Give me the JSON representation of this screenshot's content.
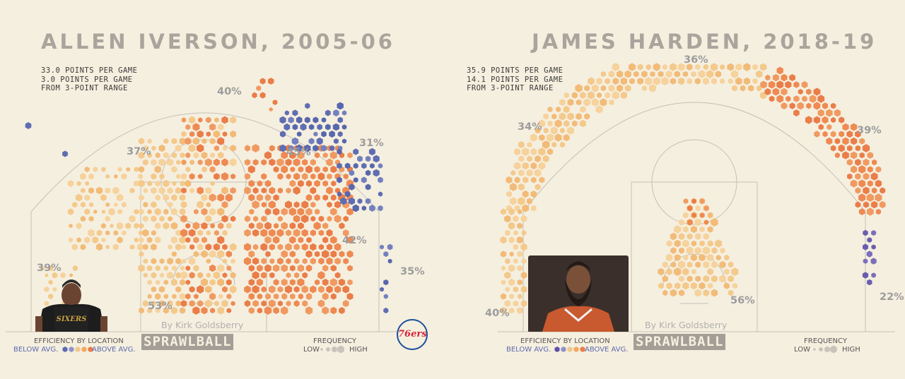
{
  "chart_data": [
    {
      "type": "scatter",
      "subtype": "hexagonal shot chart",
      "title": "ALLEN IVERSON, 2005-06",
      "stats": [
        "33.0 POINTS PER GAME",
        "3.0 POINTS PER GAME",
        "FROM 3-POINT RANGE"
      ],
      "zone_percentages": [
        {
          "zone": "above-break-3-center",
          "label": "40%"
        },
        {
          "zone": "left-wing-3",
          "label": "37%"
        },
        {
          "zone": "right-wing-mid",
          "label": "45%"
        },
        {
          "zone": "right-wing-3",
          "label": "31%"
        },
        {
          "zone": "right-baseline-mid",
          "label": "42%"
        },
        {
          "zone": "right-corner-3",
          "label": "35%"
        },
        {
          "zone": "left-corner-3",
          "label": "39%"
        },
        {
          "zone": "restricted-area",
          "label": "53%"
        }
      ],
      "byline": "By Kirk Goldsberry",
      "brand": "SPRAWLBALL",
      "legend": {
        "efficiency_title": "EFFICIENCY BY LOCATION",
        "below": "BELOW AVG.",
        "above": "ABOVE AVG.",
        "frequency_title": "FREQUENCY",
        "low": "LOW",
        "high": "HIGH",
        "colors": [
          "#5d6ab0",
          "#8f93c9",
          "#f0c78a",
          "#f4a862",
          "#ea7d48"
        ]
      },
      "team_logo": "76ers",
      "photo_jersey": "SIXERS"
    },
    {
      "type": "scatter",
      "subtype": "hexagonal shot chart",
      "title": "JAMES HARDEN, 2018-19",
      "stats": [
        "35.9 POINTS PER GAME",
        "14.1 POINTS PER GAME",
        "FROM 3-POINT RANGE"
      ],
      "zone_percentages": [
        {
          "zone": "above-break-3-center",
          "label": "36%"
        },
        {
          "zone": "left-wing-3",
          "label": "34%"
        },
        {
          "zone": "right-wing-3",
          "label": "39%"
        },
        {
          "zone": "left-corner-3",
          "label": "40%"
        },
        {
          "zone": "restricted-area",
          "label": "56%"
        },
        {
          "zone": "right-corner-3",
          "label": "22%"
        }
      ],
      "byline": "By Kirk Goldsberry",
      "brand": "SPRAWLBALL",
      "legend": {
        "efficiency_title": "EFFICIENCY BY LOCATION",
        "below": "BELOW AVG.",
        "above": "ABOVE AVG.",
        "frequency_title": "FREQUENCY",
        "low": "LOW",
        "high": "HIGH",
        "colors": [
          "#5d4fa8",
          "#8f93c9",
          "#f0c78a",
          "#f4a862",
          "#ea7d48"
        ]
      }
    }
  ]
}
